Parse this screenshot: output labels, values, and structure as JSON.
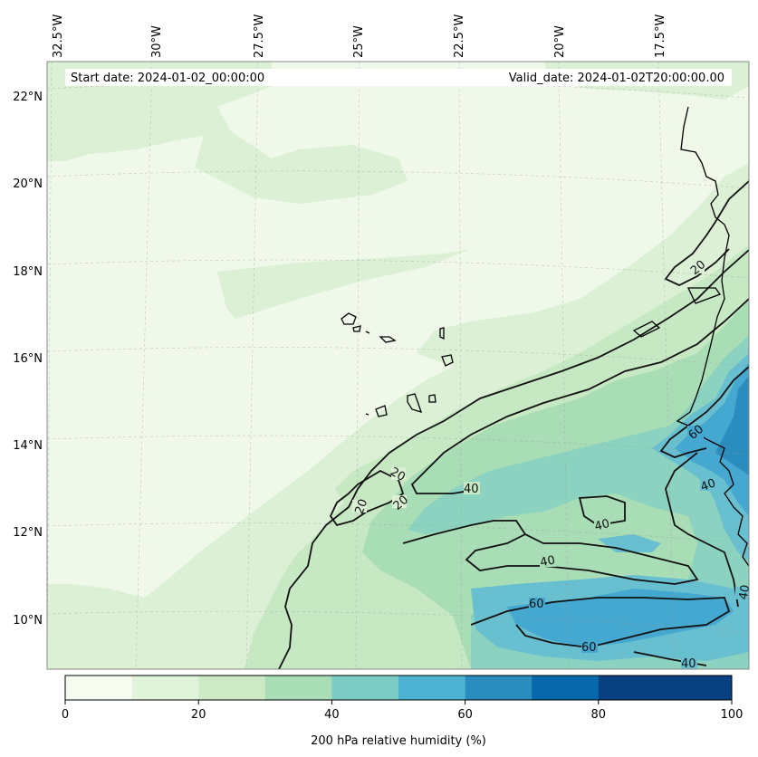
{
  "header": {
    "start_date": "Start date: 2024-01-02_00:00:00",
    "valid_date": "Valid_date: 2024-01-02T20:00:00.00"
  },
  "lon_labels": [
    "32.5°W",
    "30°W",
    "27.5°W",
    "25°W",
    "22.5°W",
    "20°W",
    "17.5°W"
  ],
  "lat_labels": [
    "22°N",
    "20°N",
    "18°N",
    "16°N",
    "14°N",
    "12°N",
    "10°N"
  ],
  "colorbar": {
    "label": "200 hPa relative humidity (%)",
    "ticks": [
      "0",
      "20",
      "40",
      "60",
      "80",
      "100"
    ],
    "levels": [
      0,
      10,
      20,
      30,
      40,
      50,
      60,
      70,
      80,
      90,
      100
    ],
    "colors": [
      "#f7fcf0",
      "#e0f3db",
      "#ccebc5",
      "#a8ddb5",
      "#7bccc4",
      "#4eb3d3",
      "#2b8cbe",
      "#0868ac",
      "#084081",
      "#084081"
    ]
  },
  "contour_labels": [
    "20",
    "20",
    "20",
    "20",
    "40",
    "40",
    "40",
    "40",
    "40",
    "60",
    "60",
    "60",
    "40"
  ],
  "map_colors": {
    "bg": "#eff8e9",
    "lvl10": "#dbf0d5",
    "lvl20": "#c6e8c2",
    "lvl30": "#a8ddb5",
    "lvl40": "#8cd2c0",
    "lvl50": "#67bfcf",
    "lvl60": "#45a8d0",
    "lvl70": "#2b8cbe"
  }
}
